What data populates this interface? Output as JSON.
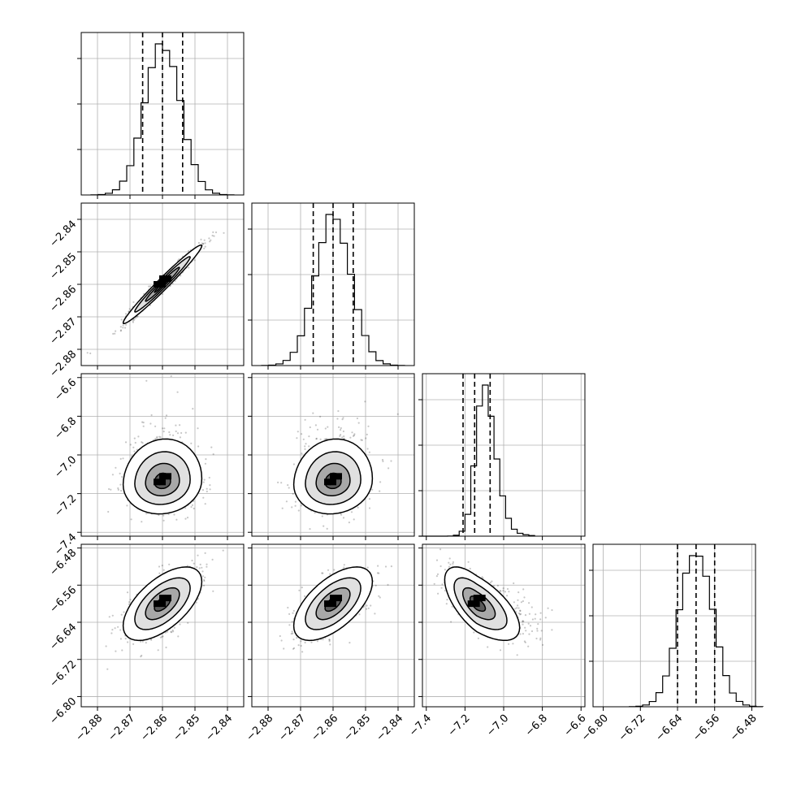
{
  "chart_data": {
    "type": "corner-plot",
    "grid": true,
    "histogram_style": "step",
    "quantile_lines": "dashed",
    "parameters": [
      {
        "range": [
          -2.885,
          -2.835
        ],
        "ticks": [
          -2.88,
          -2.87,
          -2.86,
          -2.85,
          -2.84
        ],
        "tick_labels": [
          "−2.88",
          "−2.87",
          "−2.86",
          "−2.85",
          "−2.84"
        ],
        "mean": -2.86,
        "sd": 0.0055,
        "quantiles": [
          -2.8661,
          -2.86,
          -2.8538
        ]
      },
      {
        "range": [
          -2.885,
          -2.835
        ],
        "ticks": [
          -2.88,
          -2.87,
          -2.86,
          -2.85,
          -2.84
        ],
        "tick_labels": [
          "−2.88",
          "−2.87",
          "−2.86",
          "−2.85",
          "−2.84"
        ],
        "mean": -2.86,
        "sd": 0.0055,
        "quantiles": [
          -2.8661,
          -2.86,
          -2.8538
        ]
      },
      {
        "range": [
          -7.42,
          -6.58
        ],
        "ticks": [
          -7.4,
          -7.2,
          -7.0,
          -6.8,
          -6.6
        ],
        "tick_labels": [
          "−7.4",
          "−7.2",
          "−7.0",
          "−6.8",
          "−6.6"
        ],
        "mean": -7.14,
        "sd": 0.075,
        "quantiles": [
          -7.21,
          -7.15,
          -7.07
        ]
      },
      {
        "range": [
          -6.822,
          -6.472
        ],
        "ticks": [
          -6.8,
          -6.72,
          -6.64,
          -6.56,
          -6.48
        ],
        "tick_labels": [
          "−6.80",
          "−6.72",
          "−6.64",
          "−6.56",
          "−6.48"
        ],
        "mean": -6.6,
        "sd": 0.036,
        "quantiles": [
          -6.64,
          -6.6,
          -6.56
        ]
      }
    ],
    "correlations": {
      "1-0": 0.98,
      "2-0": 0.08,
      "2-1": 0.08,
      "3-0": 0.6,
      "3-1": 0.6,
      "3-2": -0.65
    }
  }
}
